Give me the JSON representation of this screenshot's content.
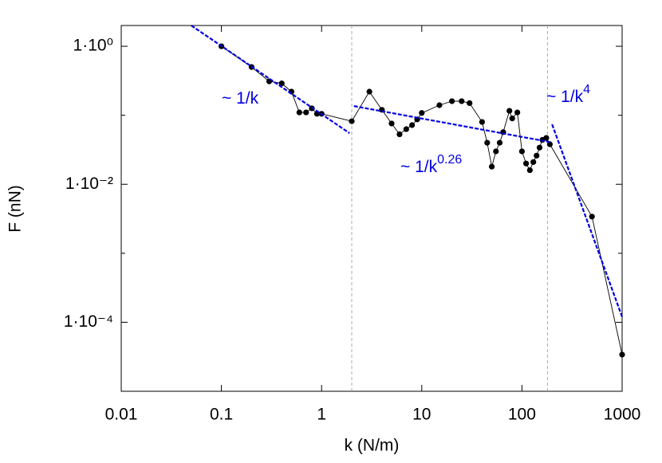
{
  "chart_data": {
    "type": "line",
    "log_x": true,
    "log_y": true,
    "x_label": "k (N/m)",
    "y_label": "F (nN)",
    "xlim": [
      0.01,
      1000
    ],
    "ylim": [
      1e-05,
      2
    ],
    "xticks": [
      0.01,
      0.1,
      1,
      10,
      100,
      1000
    ],
    "yticks": [
      {
        "value": 1,
        "label": "1·10⁰"
      },
      {
        "value": 0.01,
        "label": "1·10⁻²"
      },
      {
        "value": 0.0001,
        "label": "1·10⁻⁴"
      }
    ],
    "yminor_ticks": [
      0.1,
      0.001
    ],
    "vlines": [
      2,
      180
    ],
    "series": [
      {
        "color": "#000000",
        "x": [
          0.1,
          0.2,
          0.3,
          0.4,
          0.5,
          0.6,
          0.7,
          0.8,
          0.9,
          1,
          2,
          3,
          4,
          5,
          6,
          7,
          8,
          9,
          10,
          15,
          20,
          25,
          30,
          40,
          45,
          50,
          55,
          60,
          65,
          75,
          80,
          90,
          100,
          110,
          120,
          130,
          140,
          150,
          160,
          175,
          190,
          500,
          1000
        ],
        "values": [
          1.0,
          0.5,
          0.31,
          0.29,
          0.22,
          0.11,
          0.11,
          0.126,
          0.105,
          0.105,
          0.082,
          0.22,
          0.12,
          0.076,
          0.053,
          0.063,
          0.072,
          0.087,
          0.108,
          0.14,
          0.16,
          0.16,
          0.15,
          0.08,
          0.04,
          0.018,
          0.03,
          0.04,
          0.057,
          0.116,
          0.09,
          0.11,
          0.03,
          0.02,
          0.016,
          0.021,
          0.026,
          0.034,
          0.044,
          0.047,
          0.038,
          0.0034,
          3.4e-05
        ]
      }
    ],
    "fits": [
      {
        "text": "~ 1/k",
        "color": "#0000e0",
        "x": [
          0.05,
          1.9
        ],
        "values": [
          2,
          0.055
        ]
      },
      {
        "text": "~ 1/k",
        "superscript": "0.26",
        "color": "#0000e0",
        "x": [
          2.1,
          190
        ],
        "values": [
          0.136,
          0.041
        ]
      },
      {
        "text": "~ 1/k",
        "superscript": "4",
        "color": "#0000e0",
        "x": [
          200,
          1000
        ],
        "values": [
          0.074,
          0.00012
        ]
      }
    ]
  }
}
